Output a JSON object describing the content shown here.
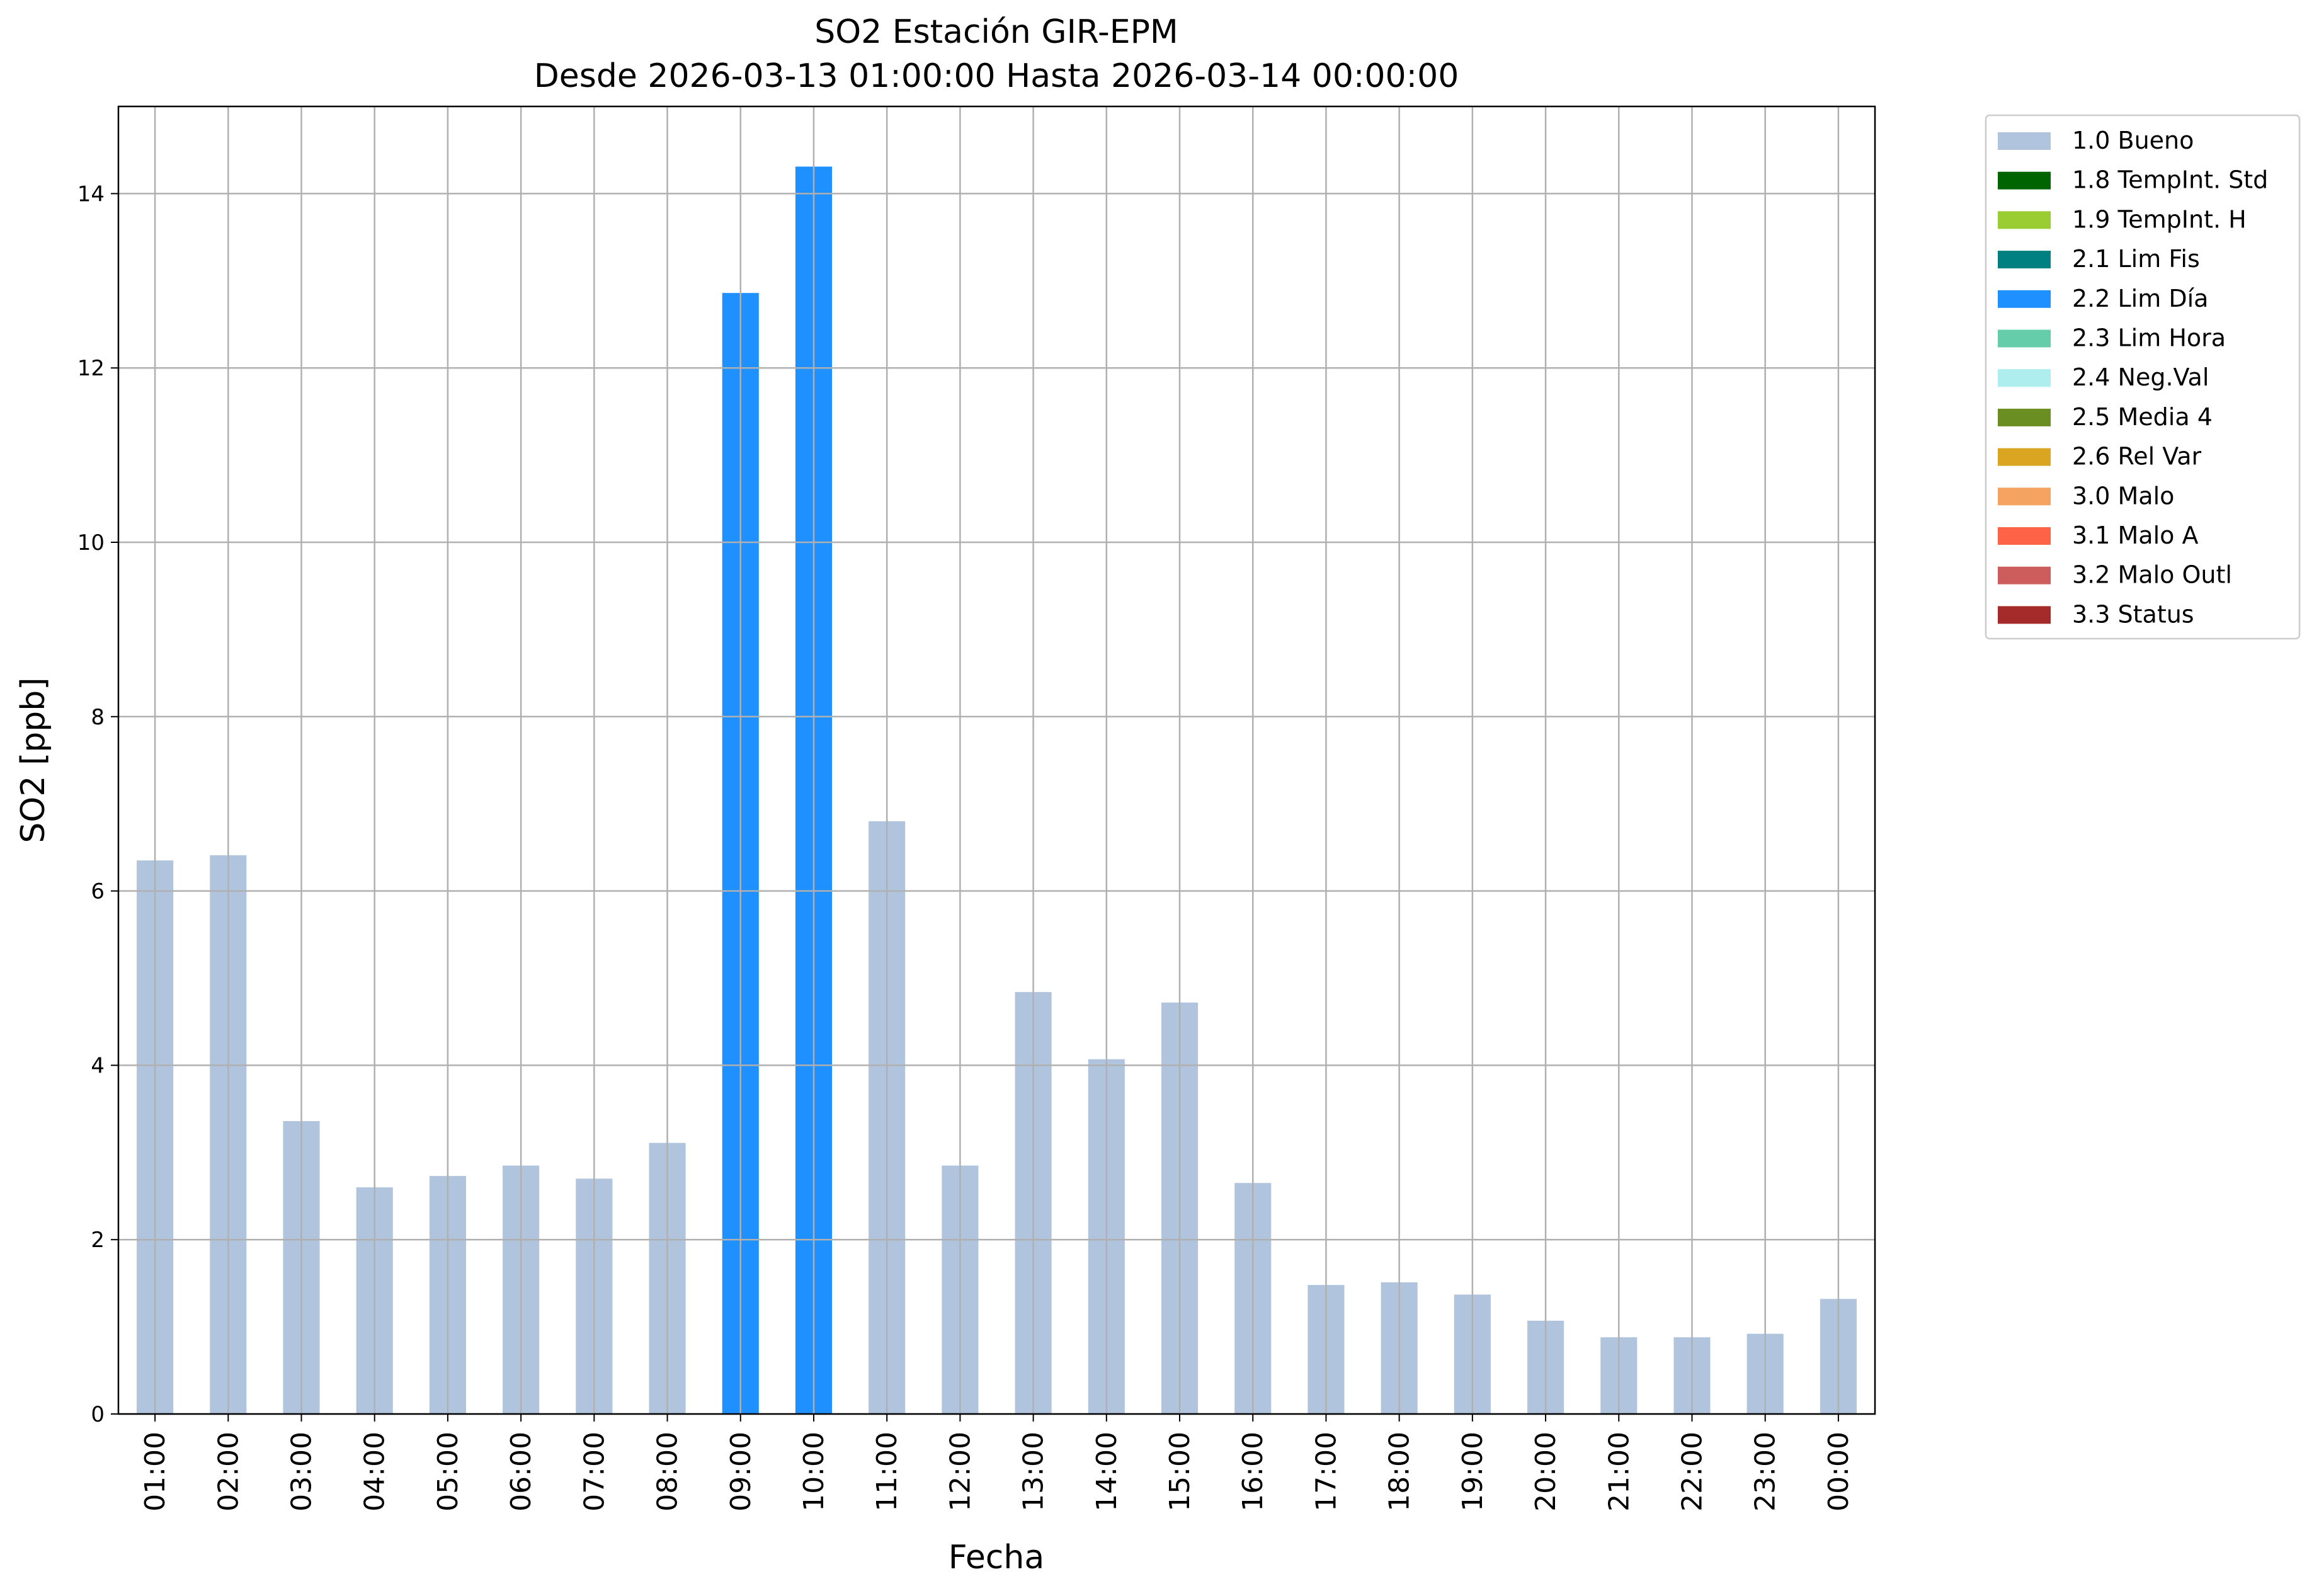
{
  "chart_data": {
    "type": "bar",
    "title": "SO2 Estación GIR-EPM",
    "subtitle": "Desde 2026-03-13 01:00:00 Hasta 2026-03-14 00:00:00",
    "xlabel": "Fecha",
    "ylabel": "SO2 [ppb]",
    "ylim": [
      0,
      15
    ],
    "yticks": [
      0,
      2,
      4,
      6,
      8,
      10,
      12,
      14
    ],
    "grid": true,
    "legend_placement": "outside-right",
    "categories": [
      "01:00",
      "02:00",
      "03:00",
      "04:00",
      "05:00",
      "06:00",
      "07:00",
      "08:00",
      "09:00",
      "10:00",
      "11:00",
      "12:00",
      "13:00",
      "14:00",
      "15:00",
      "16:00",
      "17:00",
      "18:00",
      "19:00",
      "20:00",
      "21:00",
      "22:00",
      "23:00",
      "00:00"
    ],
    "values": [
      6.35,
      6.41,
      3.36,
      2.6,
      2.73,
      2.85,
      2.7,
      3.11,
      12.86,
      14.31,
      6.8,
      2.85,
      4.84,
      4.07,
      4.72,
      2.65,
      1.48,
      1.51,
      1.37,
      1.07,
      0.88,
      0.88,
      0.92,
      1.32
    ],
    "flags": [
      "1.0 Bueno",
      "1.0 Bueno",
      "1.0 Bueno",
      "1.0 Bueno",
      "1.0 Bueno",
      "1.0 Bueno",
      "1.0 Bueno",
      "1.0 Bueno",
      "2.2 Lim Día",
      "2.2 Lim Día",
      "1.0 Bueno",
      "1.0 Bueno",
      "1.0 Bueno",
      "1.0 Bueno",
      "1.0 Bueno",
      "1.0 Bueno",
      "1.0 Bueno",
      "1.0 Bueno",
      "1.0 Bueno",
      "1.0 Bueno",
      "1.0 Bueno",
      "1.0 Bueno",
      "1.0 Bueno",
      "1.0 Bueno"
    ],
    "legend": [
      {
        "label": "1.0 Bueno",
        "color": "#b0c4de"
      },
      {
        "label": "1.8 TempInt. Std",
        "color": "#006400"
      },
      {
        "label": "1.9 TempInt. H",
        "color": "#9acd32"
      },
      {
        "label": "2.1 Lim Fis",
        "color": "#008080"
      },
      {
        "label": "2.2 Lim Día",
        "color": "#1e90ff"
      },
      {
        "label": "2.3 Lim Hora",
        "color": "#66cdaa"
      },
      {
        "label": "2.4 Neg.Val",
        "color": "#afeeee"
      },
      {
        "label": "2.5 Media 4",
        "color": "#6b8e23"
      },
      {
        "label": "2.6 Rel Var",
        "color": "#daa520"
      },
      {
        "label": "3.0 Malo",
        "color": "#f4a460"
      },
      {
        "label": "3.1 Malo A",
        "color": "#ff6347"
      },
      {
        "label": "3.2 Malo Outl",
        "color": "#cd5c5c"
      },
      {
        "label": "3.3 Status",
        "color": "#a52a2a"
      }
    ]
  }
}
